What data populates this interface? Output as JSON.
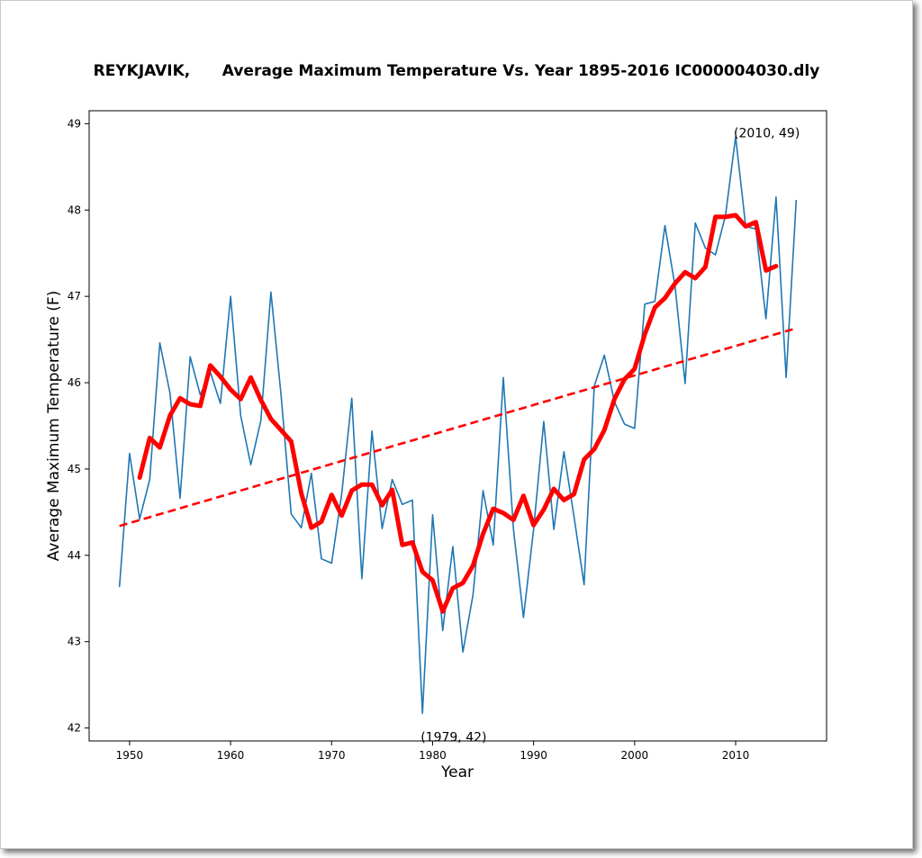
{
  "chart_data": {
    "type": "line",
    "title": "REYKJAVIK,      Average Maximum Temperature Vs. Year 1895-2016 IC000004030.dly",
    "xlabel": "Year",
    "ylabel": "Average Maximum Temperature (F)",
    "xlim": [
      1946,
      2019
    ],
    "ylim": [
      41.85,
      49.15
    ],
    "xticks": [
      1950,
      1960,
      1970,
      1980,
      1990,
      2000,
      2010
    ],
    "yticks": [
      42,
      43,
      44,
      45,
      46,
      47,
      48,
      49
    ],
    "grid": false,
    "colors": {
      "annual": "#1f77b4",
      "smoothed": "#ff0000",
      "trend": "#ff0000"
    },
    "series": [
      {
        "key": "annual",
        "style": "thin-solid",
        "x": [
          1949,
          1950,
          1951,
          1952,
          1953,
          1954,
          1955,
          1956,
          1957,
          1958,
          1959,
          1960,
          1961,
          1962,
          1963,
          1964,
          1965,
          1966,
          1967,
          1968,
          1969,
          1970,
          1971,
          1972,
          1973,
          1974,
          1975,
          1976,
          1977,
          1978,
          1979,
          1980,
          1981,
          1982,
          1983,
          1984,
          1985,
          1986,
          1987,
          1988,
          1989,
          1990,
          1991,
          1992,
          1993,
          1994,
          1995,
          1996,
          1997,
          1998,
          1999,
          2000,
          2001,
          2002,
          2003,
          2004,
          2005,
          2006,
          2007,
          2008,
          2009,
          2010,
          2011,
          2012,
          2013,
          2014,
          2015,
          2016
        ],
        "y": [
          43.64,
          45.18,
          44.42,
          44.88,
          46.46,
          45.88,
          44.66,
          46.3,
          45.86,
          46.12,
          45.76,
          47.0,
          45.62,
          45.05,
          45.56,
          47.05,
          45.85,
          44.48,
          44.32,
          44.95,
          43.96,
          43.91,
          44.71,
          45.82,
          43.73,
          45.44,
          44.31,
          44.88,
          44.59,
          44.64,
          42.17,
          44.47,
          43.13,
          44.1,
          42.88,
          43.54,
          44.75,
          44.12,
          46.06,
          44.31,
          43.28,
          44.3,
          45.55,
          44.3,
          45.2,
          44.45,
          43.66,
          45.96,
          46.32,
          45.78,
          45.52,
          45.47,
          46.91,
          46.94,
          47.82,
          47.12,
          45.99,
          47.85,
          47.56,
          47.48,
          47.94,
          48.85,
          47.81,
          47.78,
          46.74,
          48.15,
          46.06,
          48.11
        ]
      },
      {
        "key": "smoothed",
        "style": "thick-solid",
        "x": [
          1951,
          1952,
          1953,
          1954,
          1955,
          1956,
          1957,
          1958,
          1959,
          1960,
          1961,
          1962,
          1963,
          1964,
          1965,
          1966,
          1967,
          1968,
          1969,
          1970,
          1971,
          1972,
          1973,
          1974,
          1975,
          1976,
          1977,
          1978,
          1979,
          1980,
          1981,
          1982,
          1983,
          1984,
          1985,
          1986,
          1987,
          1988,
          1989,
          1990,
          1991,
          1992,
          1993,
          1994,
          1995,
          1996,
          1997,
          1998,
          1999,
          2000,
          2001,
          2002,
          2003,
          2004,
          2005,
          2006,
          2007,
          2008,
          2009,
          2010,
          2011,
          2012,
          2013,
          2014
        ],
        "y": [
          44.9,
          45.36,
          45.25,
          45.62,
          45.82,
          45.75,
          45.73,
          46.2,
          46.07,
          45.92,
          45.81,
          46.06,
          45.8,
          45.58,
          45.45,
          45.32,
          44.72,
          44.32,
          44.39,
          44.7,
          44.46,
          44.75,
          44.82,
          44.82,
          44.58,
          44.76,
          44.12,
          44.15,
          43.81,
          43.71,
          43.35,
          43.62,
          43.68,
          43.88,
          44.25,
          44.54,
          44.49,
          44.41,
          44.69,
          44.35,
          44.53,
          44.77,
          44.64,
          44.71,
          45.11,
          45.23,
          45.45,
          45.81,
          46.04,
          46.16,
          46.56,
          46.87,
          46.98,
          47.15,
          47.28,
          47.21,
          47.34,
          47.92,
          47.92,
          47.94,
          47.81,
          47.86,
          47.3,
          47.35
        ]
      },
      {
        "key": "trend",
        "style": "dashed",
        "x": [
          1949,
          2016
        ],
        "y": [
          44.34,
          46.63
        ]
      }
    ],
    "annotations": [
      {
        "x": 2010,
        "y": 49,
        "text": "(2010, 49)"
      },
      {
        "x": 1979,
        "y": 42,
        "text": "(1979, 42)"
      }
    ]
  }
}
